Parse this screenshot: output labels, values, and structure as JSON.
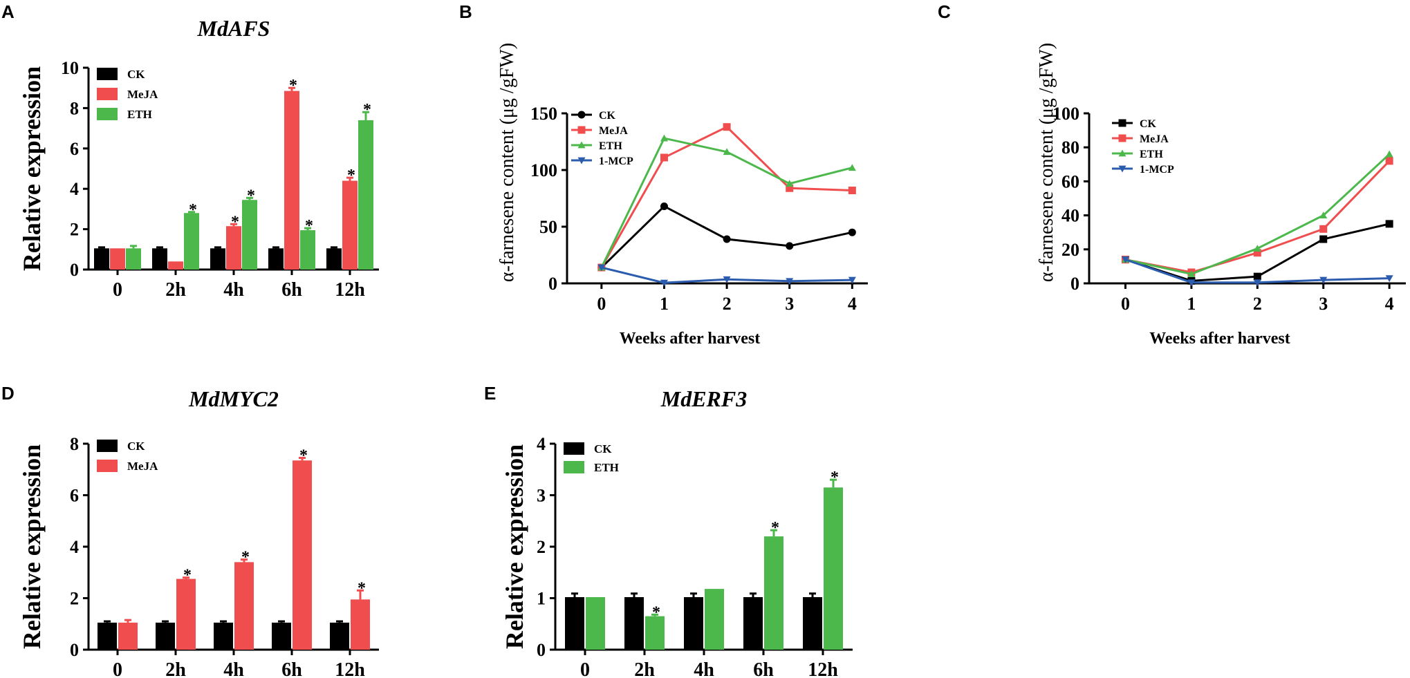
{
  "panel_labels": [
    "A",
    "B",
    "C",
    "D",
    "E"
  ],
  "chart_data": [
    {
      "type": "bar",
      "title": "MdAFS",
      "panel": "A",
      "xlabel": "",
      "ylabel": "Relative expression",
      "ylim": [
        0,
        10
      ],
      "yticks": [
        0,
        2,
        4,
        6,
        8,
        10
      ],
      "categories": [
        "0",
        "2h",
        "4h",
        "6h",
        "12h"
      ],
      "series": [
        {
          "name": "CK",
          "color": "#000000",
          "values": [
            1.05,
            1.05,
            1.05,
            1.05,
            1.05
          ],
          "errors": [
            0.05,
            0.05,
            0.05,
            0.05,
            0.05
          ],
          "stars": [
            false,
            false,
            false,
            false,
            false
          ]
        },
        {
          "name": "MeJA",
          "color": "#f04e4e",
          "values": [
            1.05,
            0.4,
            2.15,
            8.85,
            4.4
          ],
          "errors": [
            0.0,
            0.0,
            0.1,
            0.15,
            0.15
          ],
          "stars": [
            false,
            false,
            true,
            true,
            true
          ]
        },
        {
          "name": "ETH",
          "color": "#4cb84c",
          "values": [
            1.05,
            2.8,
            3.45,
            1.95,
            7.4
          ],
          "errors": [
            0.12,
            0.05,
            0.1,
            0.1,
            0.4
          ],
          "stars": [
            false,
            true,
            true,
            true,
            true
          ]
        }
      ]
    },
    {
      "type": "line",
      "title": "",
      "panel": "B",
      "xlabel": "Weeks after harvest",
      "ylabel": "α-farnesene content (μg /gFW)",
      "ylim": [
        0,
        150
      ],
      "yticks": [
        0,
        50,
        100,
        150
      ],
      "xlim": [
        -0.55,
        4.25
      ],
      "x": [
        0,
        1,
        2,
        3,
        4
      ],
      "series": [
        {
          "name": "CK",
          "color": "#000000",
          "marker": "circle",
          "values": [
            14,
            68,
            39,
            33,
            45
          ]
        },
        {
          "name": "MeJA",
          "color": "#f04e4e",
          "marker": "square",
          "values": [
            14,
            111,
            138,
            84,
            82
          ]
        },
        {
          "name": "ETH",
          "color": "#4cb84c",
          "marker": "triangle-up",
          "values": [
            14,
            128,
            116,
            88,
            102
          ]
        },
        {
          "name": "1-MCP",
          "color": "#2b5cae",
          "marker": "triangle-down",
          "values": [
            14,
            0.5,
            3.5,
            2,
            3
          ]
        }
      ]
    },
    {
      "type": "line",
      "title": "",
      "panel": "C",
      "xlabel": "Weeks after harvest",
      "ylabel": "α-farnesene content (μg /gFW)",
      "ylim": [
        0,
        100
      ],
      "yticks": [
        0,
        20,
        40,
        60,
        80,
        100
      ],
      "xlim": [
        -0.55,
        4.25
      ],
      "x": [
        0,
        1,
        2,
        3,
        4
      ],
      "series": [
        {
          "name": "CK",
          "color": "#000000",
          "marker": "square",
          "values": [
            14,
            1.5,
            4,
            26,
            35
          ]
        },
        {
          "name": "MeJA",
          "color": "#f04e4e",
          "marker": "square",
          "values": [
            14,
            6.5,
            18,
            32,
            72
          ]
        },
        {
          "name": "ETH",
          "color": "#4cb84c",
          "marker": "triangle-up",
          "values": [
            14,
            5.5,
            20.5,
            40,
            76
          ]
        },
        {
          "name": "1-MCP",
          "color": "#2b5cae",
          "marker": "triangle-down",
          "values": [
            14,
            0.5,
            0.5,
            2,
            3
          ]
        }
      ]
    },
    {
      "type": "bar",
      "title": "MdMYC2",
      "panel": "D",
      "xlabel": "",
      "ylabel": "Relative expression",
      "ylim": [
        0,
        8
      ],
      "yticks": [
        0,
        2,
        4,
        6,
        8
      ],
      "categories": [
        "0",
        "2h",
        "4h",
        "6h",
        "12h"
      ],
      "series": [
        {
          "name": "CK",
          "color": "#000000",
          "values": [
            1.05,
            1.05,
            1.05,
            1.05,
            1.05
          ],
          "errors": [
            0.05,
            0.05,
            0.05,
            0.05,
            0.05
          ],
          "stars": [
            false,
            false,
            false,
            false,
            false
          ]
        },
        {
          "name": "MeJA",
          "color": "#f04e4e",
          "values": [
            1.05,
            2.75,
            3.4,
            7.35,
            1.95
          ],
          "errors": [
            0.1,
            0.05,
            0.1,
            0.1,
            0.35
          ],
          "stars": [
            false,
            true,
            true,
            true,
            true
          ]
        }
      ]
    },
    {
      "type": "bar",
      "title": "MdERF3",
      "panel": "E",
      "xlabel": "",
      "ylabel": "Relative expression",
      "ylim": [
        0,
        4
      ],
      "yticks": [
        0,
        1,
        2,
        3,
        4
      ],
      "categories": [
        "0",
        "2h",
        "4h",
        "6h",
        "12h"
      ],
      "series": [
        {
          "name": "CK",
          "color": "#000000",
          "values": [
            1.02,
            1.02,
            1.02,
            1.02,
            1.02
          ],
          "errors": [
            0.07,
            0.07,
            0.07,
            0.07,
            0.07
          ],
          "stars": [
            false,
            false,
            false,
            false,
            false
          ]
        },
        {
          "name": "ETH",
          "color": "#4cb84c",
          "values": [
            1.02,
            0.65,
            1.18,
            2.2,
            3.15
          ],
          "errors": [
            0.0,
            0.03,
            0.0,
            0.12,
            0.15
          ],
          "stars": [
            false,
            true,
            false,
            true,
            true
          ]
        }
      ]
    }
  ]
}
